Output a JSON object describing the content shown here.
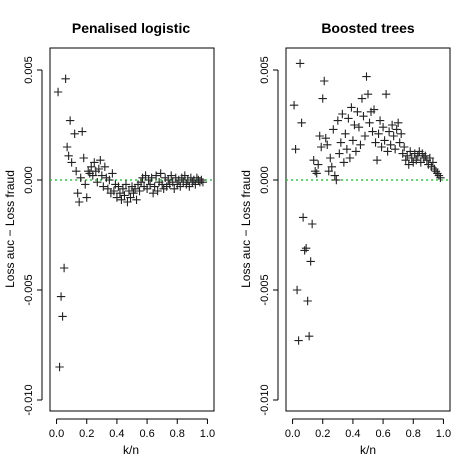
{
  "chart_data": [
    {
      "type": "scatter",
      "title": "Penalised logistic",
      "xlabel": "k/n",
      "ylabel": "Loss auc − Loss fraud",
      "xlim": [
        0,
        1
      ],
      "ylim": [
        -0.0105,
        0.006
      ],
      "xticks": [
        0.0,
        0.2,
        0.4,
        0.6,
        0.8,
        1.0
      ],
      "xtick_labels": [
        "0.0",
        "0.2",
        "0.4",
        "0.6",
        "0.8",
        "1.0"
      ],
      "yticks": [
        -0.01,
        -0.005,
        0.0,
        0.005
      ],
      "ytick_labels": [
        "-0.010",
        "-0.005",
        "0.000",
        "0.005"
      ],
      "reference_line": {
        "y": 0,
        "color": "#2ecc40",
        "style": "dotted"
      },
      "marker": "+",
      "points": [
        [
          0.01,
          0.004
        ],
        [
          0.02,
          -0.0085
        ],
        [
          0.03,
          -0.0053
        ],
        [
          0.04,
          -0.0062
        ],
        [
          0.05,
          -0.004
        ],
        [
          0.06,
          0.0046
        ],
        [
          0.07,
          0.0015
        ],
        [
          0.08,
          0.0011
        ],
        [
          0.09,
          0.0027
        ],
        [
          0.1,
          0.0008
        ],
        [
          0.12,
          0.0021
        ],
        [
          0.13,
          0.0004
        ],
        [
          0.14,
          -0.0006
        ],
        [
          0.15,
          -0.001
        ],
        [
          0.16,
          0.0001
        ],
        [
          0.17,
          0.0022
        ],
        [
          0.18,
          0.001
        ],
        [
          0.19,
          -0.0002
        ],
        [
          0.2,
          -0.0008
        ],
        [
          0.21,
          0.0004
        ],
        [
          0.22,
          0.0003
        ],
        [
          0.23,
          0.0006
        ],
        [
          0.24,
          0.0002
        ],
        [
          0.25,
          0.0008
        ],
        [
          0.26,
          0.0004
        ],
        [
          0.27,
          -0.0001
        ],
        [
          0.28,
          0.0005
        ],
        [
          0.29,
          0.0009
        ],
        [
          0.3,
          0.0002
        ],
        [
          0.31,
          -0.0003
        ],
        [
          0.32,
          0.0006
        ],
        [
          0.33,
          0.0001
        ],
        [
          0.34,
          -0.0004
        ],
        [
          0.35,
          0.0
        ],
        [
          0.36,
          -0.0006
        ],
        [
          0.37,
          0.0003
        ],
        [
          0.38,
          -0.0005
        ],
        [
          0.39,
          -0.0002
        ],
        [
          0.4,
          -0.0008
        ],
        [
          0.41,
          -0.0003
        ],
        [
          0.42,
          -0.0006
        ],
        [
          0.43,
          -0.0009
        ],
        [
          0.44,
          -0.0004
        ],
        [
          0.45,
          -0.0007
        ],
        [
          0.46,
          -0.0002
        ],
        [
          0.47,
          -0.001
        ],
        [
          0.48,
          -0.0005
        ],
        [
          0.49,
          -0.0008
        ],
        [
          0.5,
          -0.0003
        ],
        [
          0.51,
          -0.0006
        ],
        [
          0.52,
          -0.0004
        ],
        [
          0.53,
          -0.0009
        ],
        [
          0.54,
          -0.0002
        ],
        [
          0.55,
          -0.0005
        ],
        [
          0.56,
          -0.0001
        ],
        [
          0.57,
          0.0001
        ],
        [
          0.58,
          -0.0003
        ],
        [
          0.59,
          0.0002
        ],
        [
          0.6,
          -0.0004
        ],
        [
          0.61,
          0.0
        ],
        [
          0.62,
          -0.0002
        ],
        [
          0.63,
          0.0001
        ],
        [
          0.64,
          -0.0006
        ],
        [
          0.65,
          -0.0003
        ],
        [
          0.66,
          0.0002
        ],
        [
          0.67,
          -0.0005
        ],
        [
          0.68,
          -0.0001
        ],
        [
          0.69,
          0.0003
        ],
        [
          0.7,
          -0.0002
        ],
        [
          0.71,
          -0.0004
        ],
        [
          0.72,
          0.0001
        ],
        [
          0.73,
          -0.0003
        ],
        [
          0.74,
          0.0
        ],
        [
          0.75,
          -0.0002
        ],
        [
          0.76,
          0.0002
        ],
        [
          0.77,
          -0.0001
        ],
        [
          0.78,
          -0.0004
        ],
        [
          0.79,
          0.0001
        ],
        [
          0.8,
          -0.0002
        ],
        [
          0.81,
          0.0
        ],
        [
          0.82,
          -0.0003
        ],
        [
          0.83,
          0.0001
        ],
        [
          0.84,
          -0.0001
        ],
        [
          0.85,
          0.0002
        ],
        [
          0.86,
          -0.0002
        ],
        [
          0.87,
          0.0
        ],
        [
          0.88,
          -0.0003
        ],
        [
          0.89,
          0.0001
        ],
        [
          0.9,
          -0.0001
        ],
        [
          0.91,
          0.0
        ],
        [
          0.92,
          -0.0002
        ],
        [
          0.93,
          0.0001
        ],
        [
          0.94,
          0.0
        ],
        [
          0.95,
          -0.0001
        ],
        [
          0.96,
          0.0
        ],
        [
          0.97,
          -0.0001
        ]
      ]
    },
    {
      "type": "scatter",
      "title": "Boosted trees",
      "xlabel": "k/n",
      "ylabel": "Loss auc − Loss fraud",
      "xlim": [
        0,
        1
      ],
      "ylim": [
        -0.0105,
        0.006
      ],
      "xticks": [
        0.0,
        0.2,
        0.4,
        0.6,
        0.8,
        1.0
      ],
      "xtick_labels": [
        "0.0",
        "0.2",
        "0.4",
        "0.6",
        "0.8",
        "1.0"
      ],
      "yticks": [
        -0.01,
        -0.005,
        0.0,
        0.005
      ],
      "ytick_labels": [
        "-0.010",
        "-0.005",
        "0.000",
        "0.005"
      ],
      "reference_line": {
        "y": 0,
        "color": "#2ecc40",
        "style": "dotted"
      },
      "marker": "+",
      "points": [
        [
          0.01,
          0.0034
        ],
        [
          0.02,
          0.0014
        ],
        [
          0.03,
          -0.005
        ],
        [
          0.04,
          -0.0073
        ],
        [
          0.05,
          0.0053
        ],
        [
          0.06,
          0.0026
        ],
        [
          0.07,
          -0.0017
        ],
        [
          0.08,
          -0.0032
        ],
        [
          0.09,
          -0.0031
        ],
        [
          0.1,
          -0.0055
        ],
        [
          0.11,
          -0.0071
        ],
        [
          0.12,
          -0.0037
        ],
        [
          0.13,
          -0.002
        ],
        [
          0.14,
          0.0009
        ],
        [
          0.15,
          0.0004
        ],
        [
          0.16,
          0.0003
        ],
        [
          0.17,
          0.0007
        ],
        [
          0.18,
          0.002
        ],
        [
          0.19,
          0.0015
        ],
        [
          0.2,
          0.0037
        ],
        [
          0.21,
          0.0045
        ],
        [
          0.22,
          0.0019
        ],
        [
          0.23,
          0.0016
        ],
        [
          0.24,
          0.0004
        ],
        [
          0.25,
          0.001
        ],
        [
          0.26,
          0.0006
        ],
        [
          0.27,
          0.0023
        ],
        [
          0.28,
          0.0002
        ],
        [
          0.29,
          0.0
        ],
        [
          0.3,
          0.0027
        ],
        [
          0.31,
          0.0012
        ],
        [
          0.32,
          0.0017
        ],
        [
          0.33,
          0.003
        ],
        [
          0.34,
          0.0008
        ],
        [
          0.35,
          0.0021
        ],
        [
          0.36,
          0.0014
        ],
        [
          0.37,
          0.0028
        ],
        [
          0.38,
          0.001
        ],
        [
          0.39,
          0.0033
        ],
        [
          0.4,
          0.0018
        ],
        [
          0.41,
          0.0025
        ],
        [
          0.42,
          0.0013
        ],
        [
          0.43,
          0.0031
        ],
        [
          0.44,
          0.0024
        ],
        [
          0.45,
          0.0016
        ],
        [
          0.46,
          0.0037
        ],
        [
          0.47,
          0.0029
        ],
        [
          0.48,
          0.002
        ],
        [
          0.49,
          0.0047
        ],
        [
          0.5,
          0.0039
        ],
        [
          0.51,
          0.0026
        ],
        [
          0.52,
          0.0031
        ],
        [
          0.53,
          0.0022
        ],
        [
          0.54,
          0.0032
        ],
        [
          0.55,
          0.0017
        ],
        [
          0.56,
          0.0009
        ],
        [
          0.57,
          0.0021
        ],
        [
          0.58,
          0.0027
        ],
        [
          0.59,
          0.0015
        ],
        [
          0.6,
          0.0024
        ],
        [
          0.61,
          0.0018
        ],
        [
          0.62,
          0.0039
        ],
        [
          0.63,
          0.0013
        ],
        [
          0.64,
          0.0022
        ],
        [
          0.65,
          0.0016
        ],
        [
          0.66,
          0.0025
        ],
        [
          0.67,
          0.002
        ],
        [
          0.68,
          0.0014
        ],
        [
          0.69,
          0.0023
        ],
        [
          0.7,
          0.0026
        ],
        [
          0.71,
          0.0017
        ],
        [
          0.72,
          0.0021
        ],
        [
          0.73,
          0.0012
        ],
        [
          0.74,
          0.0015
        ],
        [
          0.75,
          0.0009
        ],
        [
          0.76,
          0.0011
        ],
        [
          0.77,
          0.0007
        ],
        [
          0.78,
          0.0013
        ],
        [
          0.79,
          0.001
        ],
        [
          0.8,
          0.0008
        ],
        [
          0.81,
          0.0012
        ],
        [
          0.82,
          0.0009
        ],
        [
          0.83,
          0.0011
        ],
        [
          0.84,
          0.0013
        ],
        [
          0.85,
          0.0008
        ],
        [
          0.86,
          0.0012
        ],
        [
          0.87,
          0.001
        ],
        [
          0.88,
          0.0011
        ],
        [
          0.89,
          0.0009
        ],
        [
          0.9,
          0.0007
        ],
        [
          0.91,
          0.001
        ],
        [
          0.92,
          0.0006
        ],
        [
          0.93,
          0.0008
        ],
        [
          0.94,
          0.0005
        ],
        [
          0.95,
          0.0004
        ],
        [
          0.96,
          0.0003
        ],
        [
          0.97,
          0.0002
        ],
        [
          0.98,
          0.0001
        ]
      ]
    }
  ]
}
